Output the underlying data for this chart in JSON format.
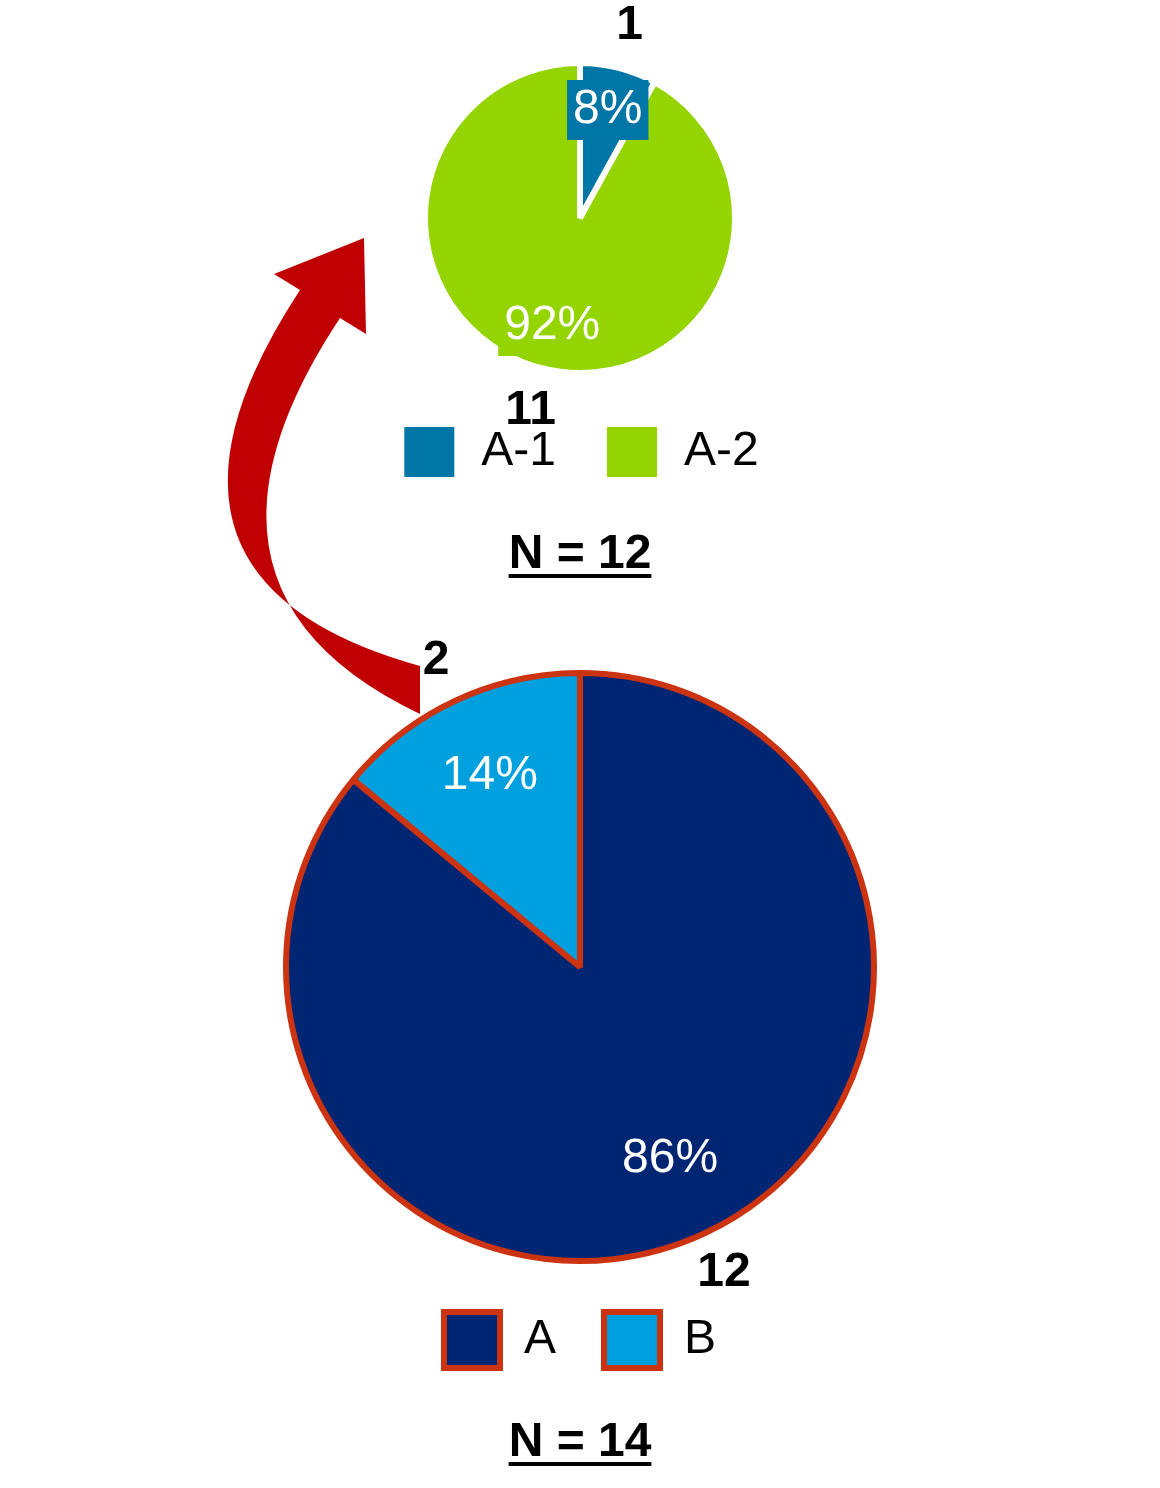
{
  "chart_data": [
    {
      "type": "pie",
      "categories": [
        "A",
        "B"
      ],
      "values": [
        86,
        14
      ],
      "colors": [
        "#002673",
        "#00a0de"
      ],
      "value_labels": [
        "86%",
        "14%"
      ],
      "legend": "bottom",
      "annotations": [
        {
          "text": "12",
          "x": "A"
        },
        {
          "text": "2",
          "x": "B"
        },
        "N = 14"
      ]
    },
    {
      "type": "pie",
      "categories": [
        "A-1",
        "A-2"
      ],
      "values": [
        8,
        92
      ],
      "colors": [
        "#0076a6",
        "#94d400"
      ],
      "value_labels": [
        "8%",
        "92%"
      ],
      "legend": "bottom",
      "annotations": [
        {
          "text": "1",
          "x": "A-1"
        },
        {
          "text": "11",
          "x": "A-2"
        },
        "N = 12"
      ]
    }
  ]
}
